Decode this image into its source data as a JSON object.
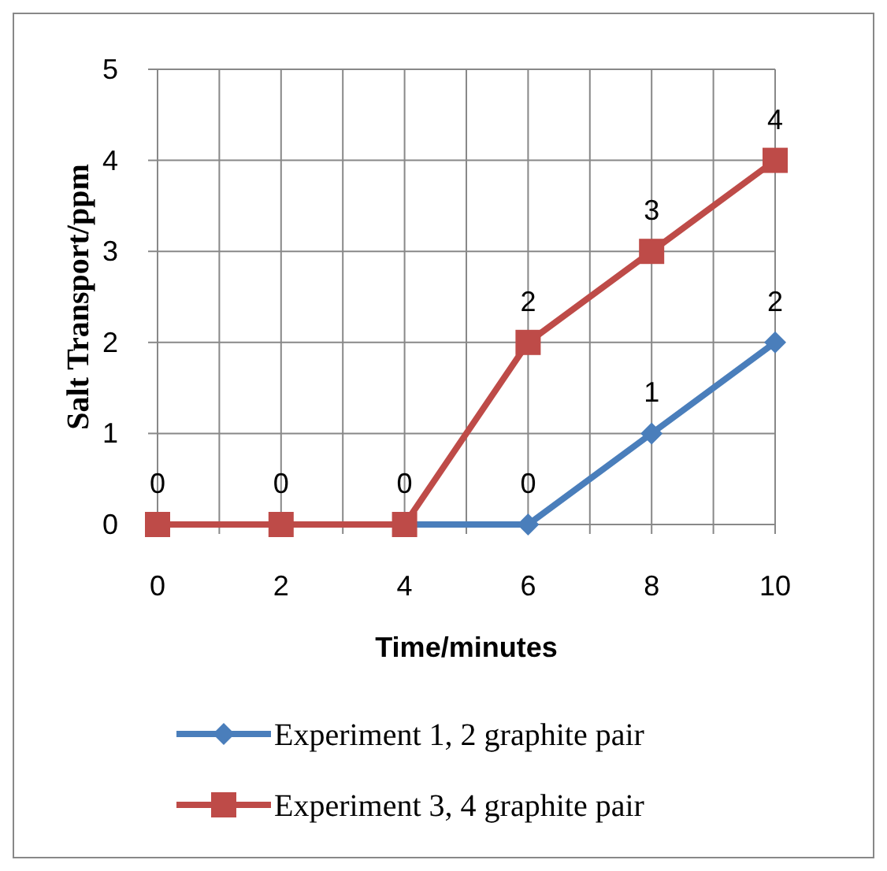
{
  "chart_data": {
    "type": "line",
    "xlabel": "Time/minutes",
    "ylabel": "Salt Transport/ppm",
    "x": [
      0,
      2,
      4,
      6,
      8,
      10
    ],
    "series": [
      {
        "name": "Experiment 1, 2 graphite pair",
        "color": "#4a7ebb",
        "values": [
          0,
          0,
          0,
          0,
          1,
          2
        ],
        "value_labels": [
          null,
          null,
          null,
          "0",
          "1",
          "2"
        ],
        "marker": "diamond"
      },
      {
        "name": "Experiment 3, 4 graphite pair",
        "color": "#be4b48",
        "values": [
          0,
          0,
          0,
          2,
          3,
          4
        ],
        "value_labels": [
          "0",
          "0",
          "0",
          "2",
          "3",
          "4"
        ],
        "marker": "square"
      }
    ],
    "xlim": [
      0,
      10
    ],
    "xticks": [
      0,
      {
        "value": 1,
        "label": null
      },
      2,
      {
        "value": 3,
        "label": null
      },
      4,
      {
        "value": 5,
        "label": null
      },
      6,
      {
        "value": 7,
        "label": null
      },
      8,
      {
        "value": 9,
        "label": null
      },
      10
    ],
    "ylim": [
      0,
      5
    ],
    "yticks": [
      0,
      1,
      2,
      3,
      4,
      5
    ],
    "grid": true,
    "legend": "bottom",
    "line_style": "solid"
  }
}
